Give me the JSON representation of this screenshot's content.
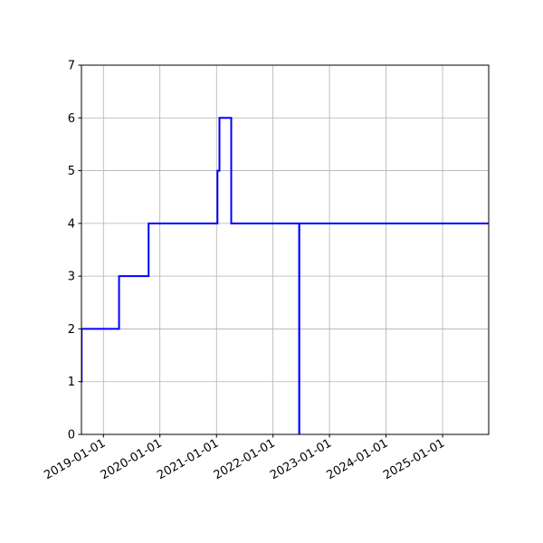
{
  "chart_data": {
    "type": "line",
    "step": "post",
    "title": "",
    "xlabel": "",
    "ylabel": "",
    "xlim": [
      "2018-08-12",
      "2025-10-26"
    ],
    "ylim": [
      0,
      7
    ],
    "grid": true,
    "line_color": "#0000ff",
    "grid_color": "#b0b0b0",
    "x_ticks": [
      "2019-01-01",
      "2020-01-01",
      "2021-01-01",
      "2022-01-01",
      "2023-01-01",
      "2024-01-01",
      "2025-01-01"
    ],
    "y_ticks": [
      "0",
      "1",
      "2",
      "3",
      "4",
      "5",
      "6",
      "7"
    ],
    "series": [
      {
        "x": [
          "2018-08-12",
          "2018-08-13",
          "2019-04-12",
          "2019-10-20",
          "2021-01-07",
          "2021-01-20",
          "2021-04-06",
          "2022-06-19",
          "2022-06-20",
          "2025-10-26"
        ],
        "y": [
          1,
          2,
          3,
          4,
          5,
          6,
          4,
          0,
          4,
          4
        ]
      }
    ]
  }
}
